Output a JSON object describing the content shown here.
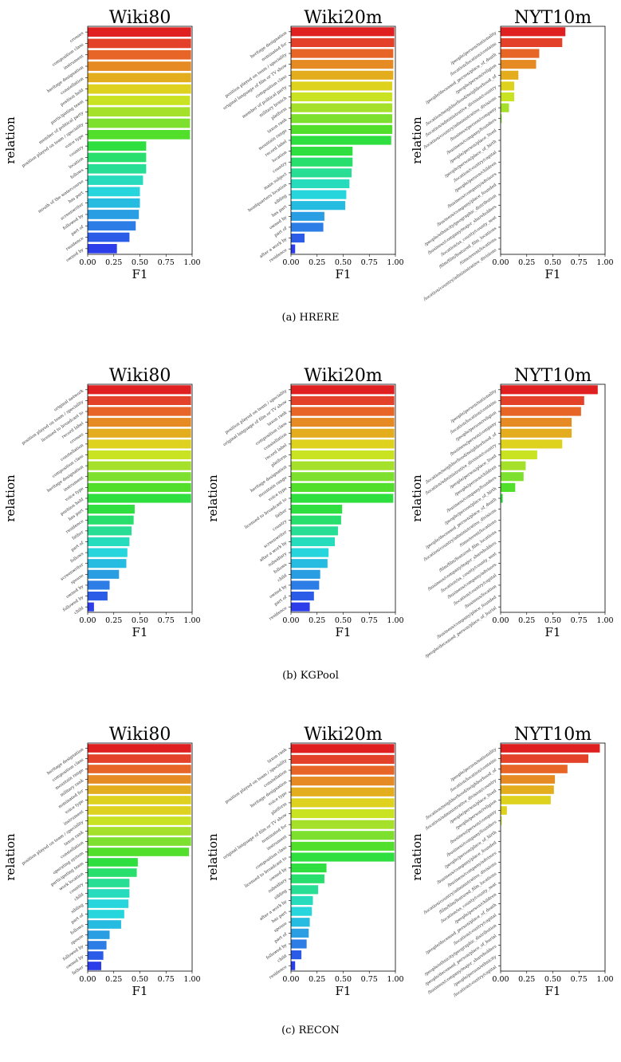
{
  "figure": {
    "rows": [
      {
        "caption": "(a)  HRERE",
        "charts": [
          {
            "title": "Wiki80",
            "xlabel": "F1",
            "ylabel": "relation",
            "type": "bar",
            "orientation": "horizontal",
            "xlim": [
              0,
              1
            ],
            "xticks": [
              "0.00",
              "0.25",
              "0.50",
              "0.75",
              "1.00"
            ],
            "categories": [
              "crosses",
              "composition class",
              "instrument",
              "heritage designation",
              "constellation",
              "position held",
              "participating team",
              "member of political party",
              "position played on team / speciality",
              "voice type",
              "country",
              "location",
              "follows",
              "mouth of the watercourse",
              "has part",
              "screenwriter",
              "followed by",
              "part of",
              "residence",
              "owned by"
            ],
            "values": [
              0.99,
              0.99,
              0.99,
              0.99,
              0.99,
              0.99,
              0.98,
              0.98,
              0.98,
              0.98,
              0.56,
              0.56,
              0.56,
              0.53,
              0.5,
              0.5,
              0.49,
              0.46,
              0.4,
              0.28
            ]
          },
          {
            "title": "Wiki20m",
            "xlabel": "F1",
            "ylabel": "",
            "type": "bar",
            "orientation": "horizontal",
            "xlim": [
              0,
              1
            ],
            "xticks": [
              "0.00",
              "0.25",
              "0.50",
              "0.75",
              "1.00"
            ],
            "categories": [
              "heritage designation",
              "nominated for",
              "position played on team / speciality",
              "original language of film or TV show",
              "composition class",
              "member of political party",
              "military branch",
              "platform",
              "taxon rank",
              "mountain range",
              "record label",
              "location",
              "country",
              "main subject",
              "headquarters location",
              "sibling",
              "has part",
              "owned by",
              "part of",
              "after a work by",
              "residence"
            ],
            "values": [
              0.99,
              0.99,
              0.98,
              0.98,
              0.98,
              0.97,
              0.97,
              0.97,
              0.97,
              0.97,
              0.96,
              0.59,
              0.59,
              0.58,
              0.56,
              0.53,
              0.52,
              0.32,
              0.31,
              0.13,
              0.04
            ]
          },
          {
            "title": "NYT10m",
            "xlabel": "F1",
            "ylabel": "relation",
            "type": "bar",
            "orientation": "horizontal",
            "xlim": [
              0,
              1
            ],
            "xticks": [
              "0.00",
              "0.25",
              "0.50",
              "0.75",
              "1.00"
            ],
            "categories": [
              "/people/person/nationality",
              "/location/location/contains",
              "/people/deceased_person/place_of_death",
              "/people/person/religion",
              "/location/neighborhood/neighborhood_of",
              "/location/administrative_division/country",
              "/location/country/administrative_divisions",
              "/business/person/company",
              "/business/company/founders",
              "/people/person/place_lived",
              "/people/person/place_of_birth",
              "/location/country/capital",
              "/people/person/children",
              "/business/company/advisors",
              "/business/company/place_founded",
              "/people/ethnicity/geographic_distribution",
              "/business/company/major_shareholders",
              "/location/us_county/county_seat",
              "/film/film/featured_film_locations",
              "/time/event/locations",
              "/location/country/administrative_divisions"
            ],
            "values": [
              0.62,
              0.59,
              0.37,
              0.34,
              0.17,
              0.13,
              0.13,
              0.08,
              0.01,
              0,
              0,
              0,
              0,
              0,
              0,
              0,
              0,
              0,
              0,
              0,
              0
            ]
          }
        ]
      },
      {
        "caption": "(b)  KGPool",
        "charts": [
          {
            "title": "Wiki80",
            "xlabel": "F1",
            "ylabel": "relation",
            "type": "bar",
            "orientation": "horizontal",
            "xlim": [
              0,
              1
            ],
            "xticks": [
              "0.00",
              "0.25",
              "0.50",
              "0.75",
              "1.00"
            ],
            "categories": [
              "original network",
              "position played on team / speciality",
              "licensed to broadcast to",
              "record label",
              "crosses",
              "constellation",
              "composition class",
              "heritage designation",
              "instrument",
              "voice type",
              "position held",
              "has part",
              "residence",
              "father",
              "part of",
              "follows",
              "screenwriter",
              "spouse",
              "owned by",
              "followed by",
              "child"
            ],
            "values": [
              0.99,
              0.99,
              0.99,
              0.99,
              0.99,
              0.99,
              0.99,
              0.99,
              0.99,
              0.99,
              0.99,
              0.45,
              0.44,
              0.42,
              0.4,
              0.38,
              0.37,
              0.3,
              0.21,
              0.19,
              0.06
            ]
          },
          {
            "title": "Wiki20m",
            "xlabel": "F1",
            "ylabel": "relation",
            "type": "bar",
            "orientation": "horizontal",
            "xlim": [
              0,
              1
            ],
            "xticks": [
              "0.00",
              "0.25",
              "0.50",
              "0.75",
              "1.00"
            ],
            "categories": [
              "position played on team / speciality",
              "original language of film or TV show",
              "taxon rank",
              "composition class",
              "constellation",
              "record label",
              "platform",
              "heritage designation",
              "mountain range",
              "voice type",
              "licensed to broadcast to",
              "father",
              "country",
              "screenwriter",
              "after a work by",
              "subsidiary",
              "follows",
              "child",
              "owned by",
              "part of",
              "residence"
            ],
            "values": [
              0.99,
              0.99,
              0.99,
              0.99,
              0.99,
              0.99,
              0.99,
              0.99,
              0.99,
              0.99,
              0.98,
              0.49,
              0.48,
              0.45,
              0.42,
              0.36,
              0.35,
              0.28,
              0.27,
              0.22,
              0.18
            ]
          },
          {
            "title": "NYT10m",
            "xlabel": "F1",
            "ylabel": "relation",
            "type": "bar",
            "orientation": "horizontal",
            "xlim": [
              0,
              1
            ],
            "xticks": [
              "0.00",
              "0.25",
              "0.50",
              "0.75",
              "1.00"
            ],
            "categories": [
              "/people/person/nationality",
              "/location/location/contains",
              "/people/person/religion",
              "/business/person/company",
              "/location/neighborhood/neighborhood_of",
              "/location/administrative_division/country",
              "/people/person/place_lived",
              "/people/person/children",
              "/business/company/founders",
              "/people/person/place_of_birth",
              "/people/deceased_person/place_of_death",
              "/location/country/administrative_divisions",
              "/time/event/locations",
              "/film/film/featured_film_locations",
              "/business/company/major_shareholders",
              "/location/us_county/county_seat",
              "/business/company/advisors",
              "/location/country/capital",
              "/business/location",
              "/business/company/place_founded",
              "/people/deceased_person/place_of_burial"
            ],
            "values": [
              0.93,
              0.8,
              0.77,
              0.68,
              0.68,
              0.59,
              0.35,
              0.24,
              0.22,
              0.14,
              0.02,
              0,
              0,
              0,
              0,
              0,
              0,
              0,
              0,
              0,
              0
            ]
          }
        ]
      },
      {
        "caption": "(c)  RECON",
        "charts": [
          {
            "title": "Wiki80",
            "xlabel": "F1",
            "ylabel": "relation",
            "type": "bar",
            "orientation": "horizontal",
            "xlim": [
              0,
              1
            ],
            "xticks": [
              "0.00",
              "0.25",
              "0.50",
              "0.75",
              "1.00"
            ],
            "categories": [
              "heritage designation",
              "composition class",
              "mountain range",
              "military rank",
              "nominated for",
              "voice type",
              "instrument",
              "position played on team / speciality",
              "taxon rank",
              "constellation",
              "operating system",
              "participating team",
              "work location",
              "country",
              "child",
              "sibling",
              "part of",
              "follows",
              "spouse",
              "followed by",
              "owned by",
              "father"
            ],
            "values": [
              0.99,
              0.99,
              0.99,
              0.99,
              0.99,
              0.99,
              0.99,
              0.99,
              0.99,
              0.99,
              0.97,
              0.48,
              0.47,
              0.4,
              0.4,
              0.39,
              0.35,
              0.32,
              0.21,
              0.18,
              0.15,
              0.13
            ]
          },
          {
            "title": "Wiki20m",
            "xlabel": "F1",
            "ylabel": "relation",
            "type": "bar",
            "orientation": "horizontal",
            "xlim": [
              0,
              1
            ],
            "xticks": [
              "0.00",
              "0.25",
              "0.50",
              "0.75",
              "1.00"
            ],
            "categories": [
              "taxon rank",
              "position played on team / speciality",
              "constellation",
              "heritage designation",
              "voice type",
              "platform",
              "original language of film or TV show",
              "nominated for",
              "instrument",
              "composition class",
              "licensed to broadcast to",
              "owned by",
              "subsidiary",
              "sibling",
              "after a work by",
              "has part",
              "spouse",
              "part of",
              "followed by",
              "child",
              "residence"
            ],
            "values": [
              0.99,
              0.99,
              0.99,
              0.99,
              0.99,
              0.99,
              0.99,
              0.99,
              0.99,
              0.99,
              0.99,
              0.34,
              0.32,
              0.26,
              0.21,
              0.2,
              0.18,
              0.17,
              0.15,
              0.1,
              0.04
            ]
          },
          {
            "title": "NYT10m",
            "xlabel": "F1",
            "ylabel": "relation",
            "type": "bar",
            "orientation": "horizontal",
            "xlim": [
              0,
              1
            ],
            "xticks": [
              "0.00",
              "0.25",
              "0.50",
              "0.75",
              "1.00"
            ],
            "categories": [
              "/people/person/nationality",
              "/location/location/contains",
              "/location/neighborhood/neighborhood_of",
              "/location/administrative_division/country",
              "/people/person/place_lived",
              "/people/person/religion",
              "/business/person/company",
              "/business/company/founders",
              "/people/person/place_of_birth",
              "/business/company/place_founded",
              "/business/company/advisors",
              "/location/country/administrative_divisions",
              "/film/film/featured_film_locations",
              "/location/us_county/county_seat",
              "/people/person/children",
              "/people/deceased_person/place_of_death",
              "/location/country/capital",
              "/people/ethnicity/geographic_distribution",
              "/people/deceased_person/place_of_burial",
              "/business/company/major_shareholders",
              "/people/person/ethnicity",
              "/location/country/capital"
            ],
            "values": [
              0.95,
              0.84,
              0.64,
              0.52,
              0.51,
              0.48,
              0.06,
              0.01,
              0,
              0,
              0,
              0,
              0,
              0,
              0,
              0,
              0,
              0,
              0,
              0,
              0,
              0
            ]
          }
        ]
      }
    ]
  },
  "palette": [
    "#e02020",
    "#e4412a",
    "#e76527",
    "#e68a23",
    "#e3ad1e",
    "#dfd21e",
    "#c9e322",
    "#a5e12a",
    "#7ee02e",
    "#52df2c",
    "#2fde3f",
    "#28de6c",
    "#27de94",
    "#26dcbd",
    "#27d6dc",
    "#26bbe0",
    "#2a9ee3",
    "#2c7de6",
    "#2b5ce8",
    "#2b3ee9"
  ]
}
